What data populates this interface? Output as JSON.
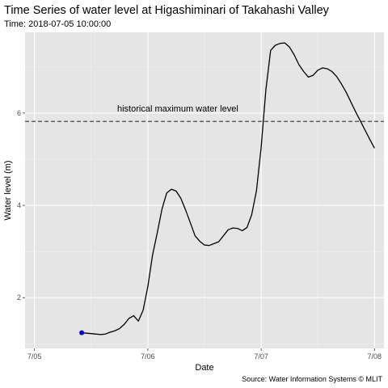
{
  "chart_data": {
    "type": "line",
    "title": "Time Series of water level at Higashiminari of Takahashi Valley",
    "subtitle": "Time: 2018-07-05 10:00:00",
    "xlabel": "Date",
    "ylabel": "Water level (m)",
    "caption": "Source: Water Information Systems © MLIT",
    "x_ticks": [
      "7/05",
      "7/06",
      "7/07",
      "7/08"
    ],
    "y_ticks": [
      2,
      4,
      6
    ],
    "xlim": [
      "2018-07-04 22:00",
      "2018-07-08 02:00"
    ],
    "ylim": [
      0.9,
      7.75
    ],
    "grid": true,
    "background_color": "#e5e5e5",
    "line_color": "#000000",
    "marker_color": "#0000cc",
    "reference_line": {
      "value": 5.82,
      "style": "dashed",
      "label": "historical maximum water level",
      "color": "#333333"
    },
    "current_point": {
      "x": "2018-07-05 10:00",
      "y": 1.24
    },
    "series": [
      {
        "x": [
          "2018-07-05 10:00",
          "2018-07-05 11:00",
          "2018-07-05 12:00",
          "2018-07-05 13:00",
          "2018-07-05 14:00",
          "2018-07-05 15:00",
          "2018-07-05 16:00",
          "2018-07-05 17:00",
          "2018-07-05 18:00",
          "2018-07-05 19:00",
          "2018-07-05 20:00",
          "2018-07-05 21:00",
          "2018-07-05 22:00",
          "2018-07-05 23:00",
          "2018-07-06 00:00",
          "2018-07-06 01:00",
          "2018-07-06 02:00",
          "2018-07-06 03:00",
          "2018-07-06 04:00",
          "2018-07-06 05:00",
          "2018-07-06 06:00",
          "2018-07-06 07:00",
          "2018-07-06 08:00",
          "2018-07-06 09:00",
          "2018-07-06 10:00",
          "2018-07-06 11:00",
          "2018-07-06 12:00",
          "2018-07-06 13:00",
          "2018-07-06 14:00",
          "2018-07-06 15:00",
          "2018-07-06 16:00",
          "2018-07-06 17:00",
          "2018-07-06 18:00",
          "2018-07-06 19:00",
          "2018-07-06 20:00",
          "2018-07-06 21:00",
          "2018-07-06 22:00",
          "2018-07-06 23:00",
          "2018-07-07 00:00",
          "2018-07-07 01:00",
          "2018-07-07 02:00",
          "2018-07-07 03:00",
          "2018-07-07 04:00",
          "2018-07-07 05:00",
          "2018-07-07 06:00",
          "2018-07-07 07:00",
          "2018-07-07 08:00",
          "2018-07-07 09:00",
          "2018-07-07 10:00",
          "2018-07-07 11:00",
          "2018-07-07 12:00",
          "2018-07-07 13:00",
          "2018-07-07 14:00",
          "2018-07-07 15:00",
          "2018-07-07 16:00",
          "2018-07-07 17:00",
          "2018-07-07 18:00",
          "2018-07-07 19:00",
          "2018-07-07 20:00",
          "2018-07-07 21:00",
          "2018-07-07 22:00",
          "2018-07-07 23:00",
          "2018-07-08 00:00"
        ],
        "values": [
          1.24,
          1.23,
          1.22,
          1.21,
          1.2,
          1.21,
          1.25,
          1.28,
          1.33,
          1.42,
          1.55,
          1.61,
          1.49,
          1.73,
          2.24,
          2.92,
          3.41,
          3.92,
          4.27,
          4.35,
          4.31,
          4.15,
          3.9,
          3.62,
          3.34,
          3.22,
          3.14,
          3.13,
          3.17,
          3.21,
          3.34,
          3.47,
          3.51,
          3.5,
          3.45,
          3.52,
          3.8,
          4.32,
          5.26,
          6.5,
          7.36,
          7.47,
          7.51,
          7.52,
          7.43,
          7.26,
          7.05,
          6.9,
          6.78,
          6.82,
          6.93,
          6.98,
          6.96,
          6.9,
          6.79,
          6.63,
          6.45,
          6.24,
          6.03,
          5.83,
          5.63,
          5.43,
          5.24
        ]
      }
    ]
  }
}
